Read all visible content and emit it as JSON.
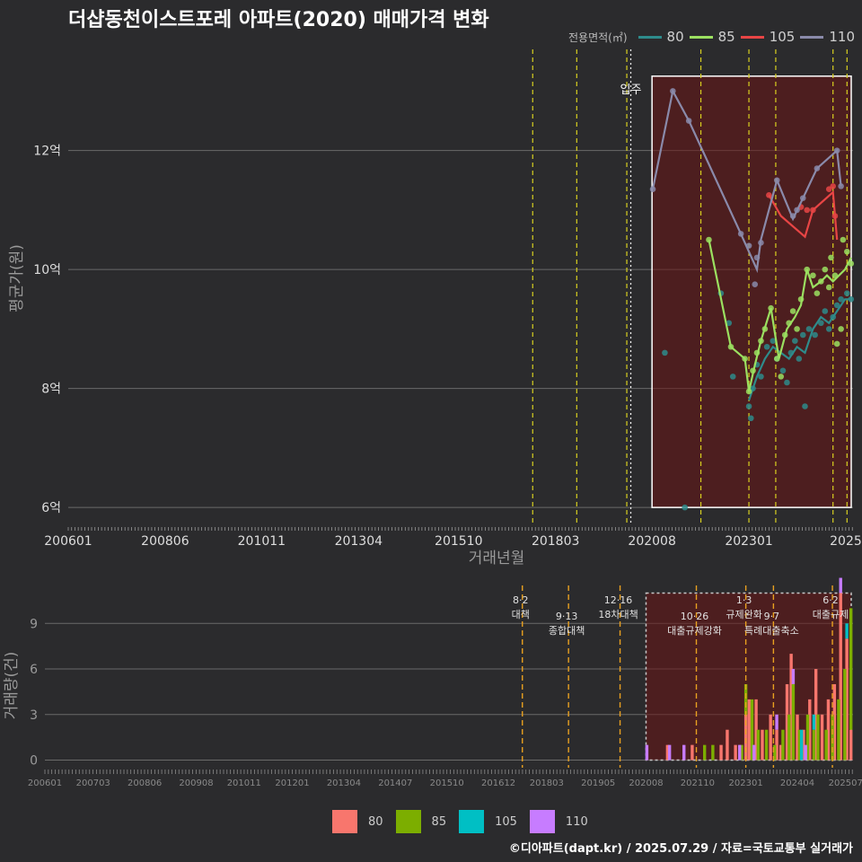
{
  "title": "더샵동천이스트포레 아파트(2020) 매매가격 변화",
  "footer": "©디아파트(dapt.kr) / 2025.07.29 / 자료=국토교통부 실거래가",
  "legend_top": {
    "title": "전용면적(㎡)",
    "items": [
      {
        "label": "80",
        "color": "#2e8b8b"
      },
      {
        "label": "85",
        "color": "#9be060"
      },
      {
        "label": "105",
        "color": "#e84545"
      },
      {
        "label": "110",
        "color": "#8a8aaa"
      }
    ]
  },
  "legend_bottom": {
    "items": [
      {
        "label": "80",
        "color": "#f8766d"
      },
      {
        "label": "85",
        "color": "#7cae00"
      },
      {
        "label": "105",
        "color": "#00bfc4"
      },
      {
        "label": "110",
        "color": "#c77cff"
      }
    ]
  },
  "chart_data": [
    {
      "type": "line",
      "title": "더샵동천이스트포레 아파트(2020) 매매가격 변화",
      "xlabel": "거래년월",
      "ylabel": "평균가(원)",
      "xlim": [
        2006.0,
        2025.6
      ],
      "ylim": [
        5.7,
        13.7
      ],
      "x_ticks": [
        {
          "x": 2006.0,
          "label": "200601"
        },
        {
          "x": 2008.42,
          "label": "200806"
        },
        {
          "x": 2010.83,
          "label": "201011"
        },
        {
          "x": 2013.25,
          "label": "201304"
        },
        {
          "x": 2015.75,
          "label": "201510"
        },
        {
          "x": 2018.17,
          "label": "201803"
        },
        {
          "x": 2020.58,
          "label": "202008"
        },
        {
          "x": 2023.0,
          "label": "202301"
        },
        {
          "x": 2025.42,
          "label": "2025"
        }
      ],
      "y_ticks": [
        {
          "y": 6,
          "label": "6억"
        },
        {
          "y": 8,
          "label": "8억"
        },
        {
          "y": 10,
          "label": "10억"
        },
        {
          "y": 12,
          "label": "12억"
        }
      ],
      "policy_lines": [
        2017.6,
        2018.7,
        2019.95,
        2021.8,
        2023.0,
        2023.67,
        2025.1,
        2025.45
      ],
      "move_in": {
        "x": 2020.05,
        "label": "입주"
      },
      "highlight": {
        "x0": 2020.58,
        "x1": 2025.6,
        "y0": 6.0,
        "y1": 13.25
      },
      "series": [
        {
          "name": "80",
          "color": "#2e8b8b",
          "points": [
            [
              2020.9,
              8.6
            ],
            [
              2021.4,
              6.0
            ],
            [
              2022.3,
              9.6
            ],
            [
              2022.5,
              9.1
            ],
            [
              2022.6,
              8.2
            ],
            [
              2023.0,
              7.7
            ],
            [
              2023.05,
              7.5
            ],
            [
              2023.1,
              8.0
            ],
            [
              2023.2,
              8.4
            ],
            [
              2023.3,
              8.2
            ],
            [
              2023.45,
              8.7
            ],
            [
              2023.6,
              8.8
            ],
            [
              2023.7,
              8.5
            ],
            [
              2023.85,
              8.3
            ],
            [
              2023.95,
              8.1
            ],
            [
              2024.05,
              8.6
            ],
            [
              2024.15,
              8.8
            ],
            [
              2024.25,
              8.5
            ],
            [
              2024.35,
              8.9
            ],
            [
              2024.4,
              7.7
            ],
            [
              2024.5,
              9.0
            ],
            [
              2024.65,
              8.9
            ],
            [
              2024.8,
              9.1
            ],
            [
              2024.9,
              9.3
            ],
            [
              2025.0,
              9.0
            ],
            [
              2025.1,
              9.2
            ],
            [
              2025.2,
              9.4
            ],
            [
              2025.3,
              9.5
            ],
            [
              2025.45,
              9.6
            ],
            [
              2025.55,
              9.5
            ]
          ],
          "line": [
            [
              2023.0,
              7.8
            ],
            [
              2023.2,
              8.2
            ],
            [
              2023.4,
              8.5
            ],
            [
              2023.6,
              8.7
            ],
            [
              2023.8,
              8.6
            ],
            [
              2024.0,
              8.5
            ],
            [
              2024.2,
              8.7
            ],
            [
              2024.4,
              8.6
            ],
            [
              2024.6,
              9.0
            ],
            [
              2024.8,
              9.2
            ],
            [
              2025.0,
              9.1
            ],
            [
              2025.2,
              9.3
            ],
            [
              2025.4,
              9.5
            ],
            [
              2025.55,
              9.5
            ]
          ]
        },
        {
          "name": "85",
          "color": "#9be060",
          "points": [
            [
              2022.0,
              10.5
            ],
            [
              2022.55,
              8.7
            ],
            [
              2022.9,
              8.5
            ],
            [
              2023.0,
              7.95
            ],
            [
              2023.1,
              8.3
            ],
            [
              2023.2,
              8.6
            ],
            [
              2023.3,
              8.8
            ],
            [
              2023.4,
              9.0
            ],
            [
              2023.55,
              9.35
            ],
            [
              2023.7,
              8.5
            ],
            [
              2023.8,
              8.2
            ],
            [
              2023.9,
              8.9
            ],
            [
              2024.0,
              9.1
            ],
            [
              2024.1,
              9.3
            ],
            [
              2024.2,
              9.0
            ],
            [
              2024.3,
              9.5
            ],
            [
              2024.45,
              10.0
            ],
            [
              2024.6,
              9.9
            ],
            [
              2024.7,
              9.6
            ],
            [
              2024.8,
              9.8
            ],
            [
              2024.9,
              10.0
            ],
            [
              2025.0,
              9.7
            ],
            [
              2025.05,
              10.2
            ],
            [
              2025.15,
              9.9
            ],
            [
              2025.2,
              8.75
            ],
            [
              2025.3,
              9.0
            ],
            [
              2025.35,
              10.5
            ],
            [
              2025.45,
              10.3
            ],
            [
              2025.55,
              10.1
            ]
          ],
          "line": [
            [
              2022.0,
              10.5
            ],
            [
              2022.55,
              8.7
            ],
            [
              2022.9,
              8.5
            ],
            [
              2023.0,
              7.95
            ],
            [
              2023.15,
              8.4
            ],
            [
              2023.3,
              8.8
            ],
            [
              2023.55,
              9.35
            ],
            [
              2023.75,
              8.5
            ],
            [
              2023.95,
              9.0
            ],
            [
              2024.15,
              9.2
            ],
            [
              2024.3,
              9.4
            ],
            [
              2024.45,
              10.0
            ],
            [
              2024.6,
              9.7
            ],
            [
              2024.8,
              9.8
            ],
            [
              2024.95,
              9.9
            ],
            [
              2025.1,
              9.8
            ],
            [
              2025.25,
              9.9
            ],
            [
              2025.4,
              10.0
            ],
            [
              2025.55,
              10.2
            ]
          ]
        },
        {
          "name": "105",
          "color": "#e84545",
          "points": [
            [
              2023.5,
              11.25
            ],
            [
              2024.3,
              11.05
            ],
            [
              2024.45,
              11.0
            ],
            [
              2024.6,
              11.0
            ],
            [
              2025.0,
              11.35
            ],
            [
              2025.1,
              11.4
            ],
            [
              2025.15,
              10.9
            ]
          ],
          "line": [
            [
              2023.5,
              11.25
            ],
            [
              2023.8,
              10.9
            ],
            [
              2024.4,
              10.55
            ],
            [
              2024.6,
              11.0
            ],
            [
              2025.1,
              11.3
            ],
            [
              2025.2,
              10.5
            ]
          ]
        },
        {
          "name": "110",
          "color": "#8a8aaa",
          "points": [
            [
              2020.6,
              11.35
            ],
            [
              2021.1,
              13.0
            ],
            [
              2021.5,
              12.5
            ],
            [
              2022.8,
              10.6
            ],
            [
              2023.0,
              10.4
            ],
            [
              2023.15,
              9.75
            ],
            [
              2023.2,
              10.2
            ],
            [
              2023.3,
              10.45
            ],
            [
              2023.7,
              11.5
            ],
            [
              2024.1,
              10.9
            ],
            [
              2024.2,
              11.0
            ],
            [
              2024.35,
              11.2
            ],
            [
              2024.7,
              11.7
            ],
            [
              2025.2,
              12.0
            ],
            [
              2025.3,
              11.4
            ]
          ],
          "line": [
            [
              2020.6,
              11.35
            ],
            [
              2021.1,
              13.0
            ],
            [
              2021.5,
              12.5
            ],
            [
              2022.8,
              10.6
            ],
            [
              2023.2,
              10.0
            ],
            [
              2023.3,
              10.5
            ],
            [
              2023.7,
              11.5
            ],
            [
              2024.1,
              10.85
            ],
            [
              2024.35,
              11.2
            ],
            [
              2024.7,
              11.7
            ],
            [
              2025.2,
              12.0
            ],
            [
              2025.3,
              11.4
            ]
          ]
        }
      ]
    },
    {
      "type": "bar",
      "xlabel": "",
      "ylabel": "거래량(건)",
      "xlim": [
        2006.0,
        2025.6
      ],
      "ylim": [
        -0.5,
        11.5
      ],
      "x_ticks": [
        {
          "x": 2006.0,
          "label": "200601"
        },
        {
          "x": 2007.17,
          "label": "200703"
        },
        {
          "x": 2008.42,
          "label": "200806"
        },
        {
          "x": 2009.67,
          "label": "200908"
        },
        {
          "x": 2010.83,
          "label": "201011"
        },
        {
          "x": 2012.0,
          "label": "201201"
        },
        {
          "x": 2013.25,
          "label": "201304"
        },
        {
          "x": 2014.5,
          "label": "201407"
        },
        {
          "x": 2015.75,
          "label": "201510"
        },
        {
          "x": 2017.0,
          "label": "201612"
        },
        {
          "x": 2018.17,
          "label": "201803"
        },
        {
          "x": 2019.42,
          "label": "201905"
        },
        {
          "x": 2020.58,
          "label": "202008"
        },
        {
          "x": 2021.83,
          "label": "202110"
        },
        {
          "x": 2023.0,
          "label": "202301"
        },
        {
          "x": 2024.25,
          "label": "202404"
        },
        {
          "x": 2025.42,
          "label": "202507"
        }
      ],
      "y_ticks": [
        {
          "y": 0,
          "label": "0"
        },
        {
          "y": 3,
          "label": "3"
        },
        {
          "y": 6,
          "label": "6"
        },
        {
          "y": 9,
          "label": "9"
        }
      ],
      "policies": [
        {
          "x": 2017.58,
          "date": "8·2",
          "label": "대책"
        },
        {
          "x": 2018.7,
          "date": "9·13",
          "label": "종합대책"
        },
        {
          "x": 2019.95,
          "date": "12·16",
          "label": "18차대책"
        },
        {
          "x": 2021.8,
          "date": "10·26",
          "label": "대출규제강화"
        },
        {
          "x": 2023.0,
          "date": "1·3",
          "label": "규제완화"
        },
        {
          "x": 2023.67,
          "date": "9·7",
          "label": "특례대출축소"
        },
        {
          "x": 2025.1,
          "date": "6·2",
          "label": "대출규제"
        }
      ],
      "highlight": {
        "x0": 2020.58,
        "x1": 2025.6,
        "y0": 0,
        "y1": 11
      },
      "series": [
        {
          "name": "80",
          "color": "#f8766d",
          "bars": [
            [
              2021.1,
              1
            ],
            [
              2021.7,
              1
            ],
            [
              2022.4,
              1
            ],
            [
              2022.55,
              2
            ],
            [
              2022.75,
              1
            ],
            [
              2023.0,
              3
            ],
            [
              2023.08,
              4
            ],
            [
              2023.25,
              4
            ],
            [
              2023.4,
              2
            ],
            [
              2023.6,
              3
            ],
            [
              2023.75,
              2
            ],
            [
              2023.85,
              1
            ],
            [
              2024.0,
              5
            ],
            [
              2024.1,
              7
            ],
            [
              2024.25,
              3
            ],
            [
              2024.4,
              2
            ],
            [
              2024.55,
              4
            ],
            [
              2024.7,
              6
            ],
            [
              2024.85,
              3
            ],
            [
              2025.0,
              4
            ],
            [
              2025.15,
              5
            ],
            [
              2025.3,
              11
            ],
            [
              2025.45,
              8
            ],
            [
              2025.55,
              2
            ]
          ]
        },
        {
          "name": "85",
          "color": "#7cae00",
          "bars": [
            [
              2022.0,
              1
            ],
            [
              2022.2,
              1
            ],
            [
              2022.9,
              1
            ],
            [
              2023.0,
              2
            ],
            [
              2023.15,
              4
            ],
            [
              2023.3,
              2
            ],
            [
              2023.5,
              2
            ],
            [
              2023.7,
              1
            ],
            [
              2023.9,
              2
            ],
            [
              2024.05,
              3
            ],
            [
              2024.15,
              5
            ],
            [
              2024.3,
              2
            ],
            [
              2024.5,
              3
            ],
            [
              2024.65,
              2
            ],
            [
              2024.75,
              3
            ],
            [
              2024.95,
              2
            ],
            [
              2025.1,
              3
            ],
            [
              2025.25,
              4
            ],
            [
              2025.4,
              6
            ],
            [
              2025.55,
              8
            ]
          ]
        },
        {
          "name": "105",
          "color": "#00bfc4",
          "bars": [
            [
              2024.35,
              2
            ],
            [
              2024.65,
              1
            ],
            [
              2025.45,
              1
            ]
          ]
        },
        {
          "name": "110",
          "color": "#c77cff",
          "bars": [
            [
              2020.6,
              1
            ],
            [
              2021.15,
              1
            ],
            [
              2021.5,
              1
            ],
            [
              2022.85,
              1
            ],
            [
              2023.2,
              1
            ],
            [
              2023.75,
              1
            ],
            [
              2024.15,
              1
            ],
            [
              2024.45,
              1
            ],
            [
              2025.3,
              1
            ]
          ]
        }
      ]
    }
  ]
}
